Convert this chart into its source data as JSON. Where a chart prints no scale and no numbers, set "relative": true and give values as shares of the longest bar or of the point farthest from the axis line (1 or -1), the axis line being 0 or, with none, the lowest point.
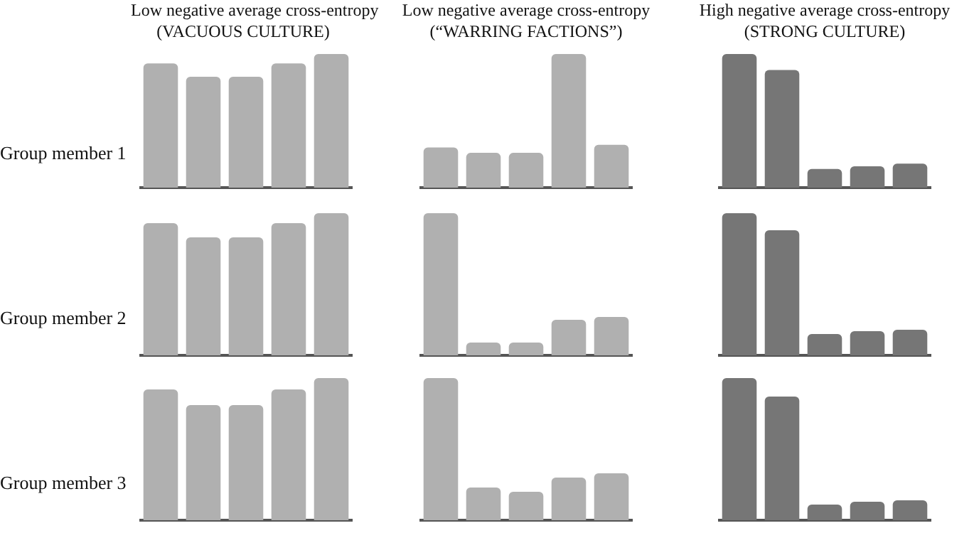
{
  "chart_data": [
    {
      "type": "bar",
      "title": "Low negative average cross-entropy",
      "subtitle": "(VACUOUS CULTURE)",
      "ylabel": "Group member 1",
      "relative": true,
      "tick_labels": false,
      "categories": [
        null,
        null,
        null,
        null,
        null
      ],
      "values": [
        0.93,
        0.83,
        0.83,
        0.93,
        1
      ],
      "color": "#b0b0b0"
    },
    {
      "type": "bar",
      "title": "Low negative average cross-entropy",
      "subtitle": "(“WARRING FACTIONS”)",
      "relative": true,
      "tick_labels": false,
      "categories": [
        null,
        null,
        null,
        null,
        null
      ],
      "values": [
        0.3,
        0.26,
        0.26,
        1,
        0.32
      ],
      "color": "#b0b0b0"
    },
    {
      "type": "bar",
      "title": "High negative average cross-entropy",
      "subtitle": "(STRONG CULTURE)",
      "relative": true,
      "tick_labels": false,
      "categories": [
        null,
        null,
        null,
        null,
        null
      ],
      "values": [
        1,
        0.88,
        0.14,
        0.16,
        0.18
      ],
      "color": "#767676"
    },
    {
      "type": "bar",
      "ylabel": "Group member 2",
      "relative": true,
      "tick_labels": false,
      "categories": [
        null,
        null,
        null,
        null,
        null
      ],
      "values": [
        0.93,
        0.83,
        0.83,
        0.93,
        1
      ],
      "color": "#b0b0b0"
    },
    {
      "type": "bar",
      "relative": true,
      "tick_labels": false,
      "categories": [
        null,
        null,
        null,
        null,
        null
      ],
      "values": [
        1,
        0.09,
        0.09,
        0.25,
        0.27
      ],
      "color": "#b0b0b0"
    },
    {
      "type": "bar",
      "relative": true,
      "tick_labels": false,
      "categories": [
        null,
        null,
        null,
        null,
        null
      ],
      "values": [
        1,
        0.88,
        0.15,
        0.17,
        0.18
      ],
      "color": "#767676"
    },
    {
      "type": "bar",
      "ylabel": "Group member 3",
      "relative": true,
      "tick_labels": false,
      "categories": [
        null,
        null,
        null,
        null,
        null
      ],
      "values": [
        0.92,
        0.81,
        0.81,
        0.92,
        1
      ],
      "color": "#b0b0b0"
    },
    {
      "type": "bar",
      "relative": true,
      "tick_labels": false,
      "categories": [
        null,
        null,
        null,
        null,
        null
      ],
      "values": [
        1,
        0.23,
        0.2,
        0.3,
        0.33
      ],
      "color": "#b0b0b0"
    },
    {
      "type": "bar",
      "relative": true,
      "tick_labels": false,
      "categories": [
        null,
        null,
        null,
        null,
        null
      ],
      "values": [
        1,
        0.87,
        0.11,
        0.13,
        0.14
      ],
      "color": "#767676"
    }
  ]
}
